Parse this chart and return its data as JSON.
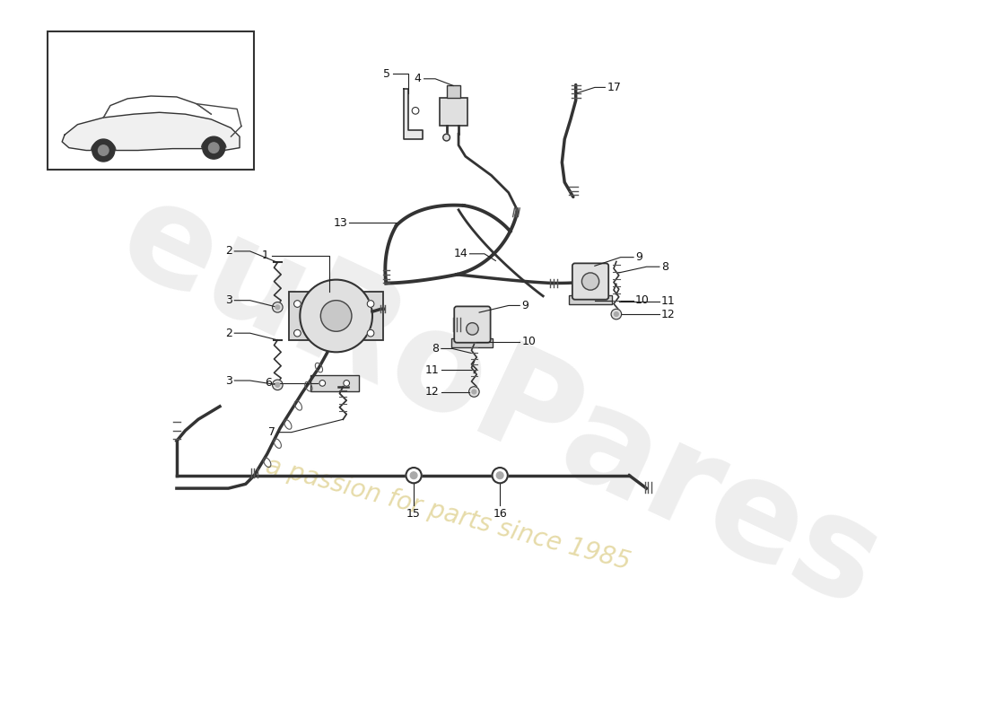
{
  "bg_color": "#ffffff",
  "line_color": "#222222",
  "label_color": "#111111",
  "watermark1": "euRoPares",
  "watermark2": "a passion for parts since 1985",
  "part_numbers": [
    1,
    2,
    3,
    4,
    5,
    6,
    7,
    8,
    9,
    10,
    11,
    12,
    13,
    14,
    15,
    16,
    17
  ]
}
